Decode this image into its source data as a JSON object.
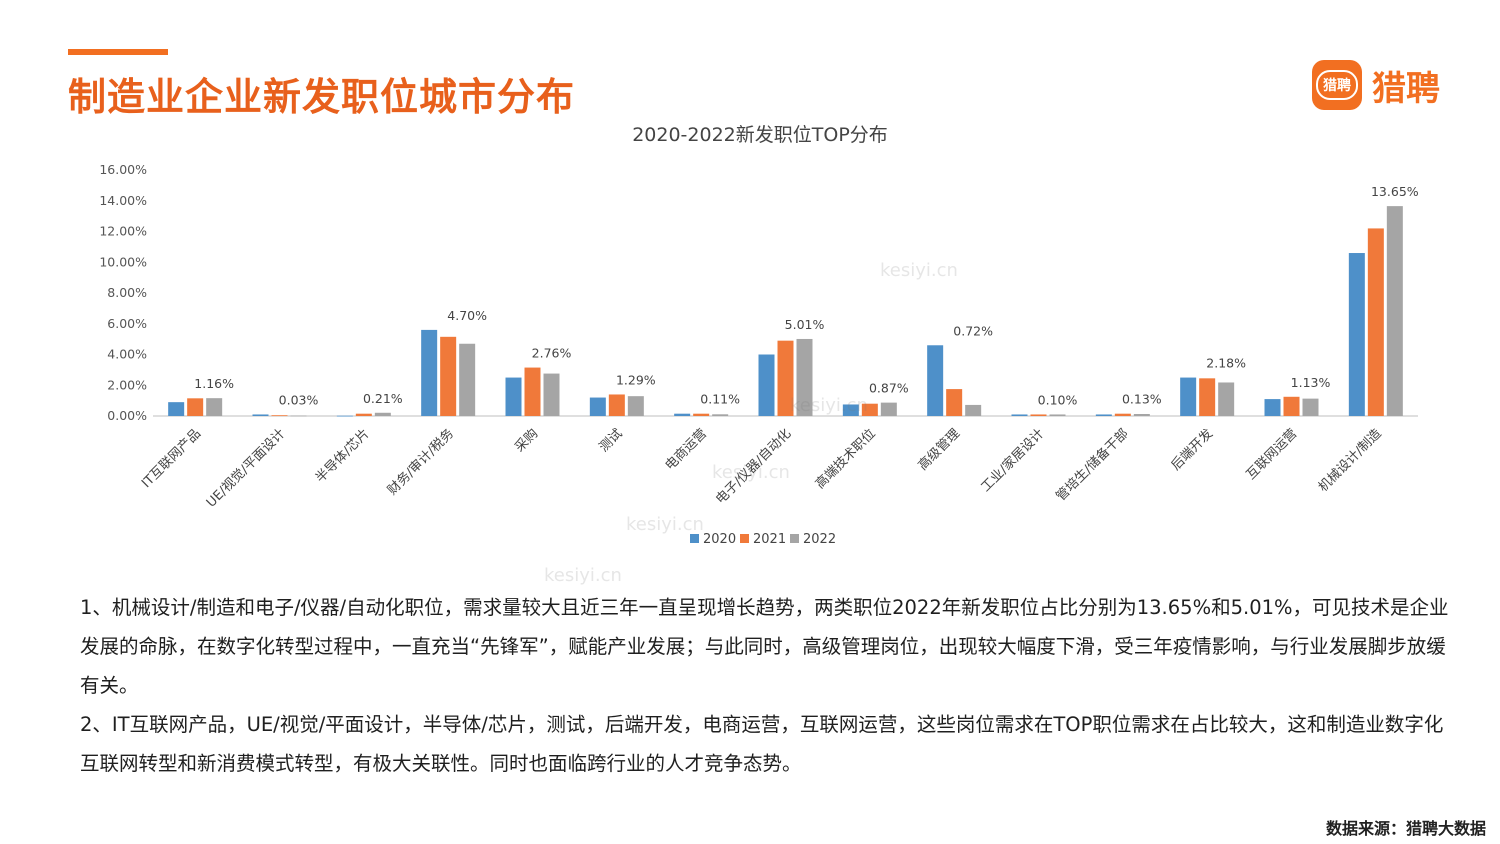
{
  "header": {
    "title": "制造业企业新发职位城市分布",
    "logo_badge": "猎聘",
    "logo_text": "猎聘"
  },
  "watermark": {
    "text": "kesiyi.cn"
  },
  "chart_data": {
    "type": "bar",
    "title": "2020-2022新发职位TOP分布",
    "categories": [
      "IT互联网产品",
      "UE/视觉/平面设计",
      "半导体/芯片",
      "财务/审计/税务",
      "采购",
      "测试",
      "电商运营",
      "电子/仪器/自动化",
      "高端技术职位",
      "高级管理",
      "工业/家居设计",
      "管培生/储备干部",
      "后端开发",
      "互联网运营",
      "机械设计/制造"
    ],
    "series": [
      {
        "name": "2020",
        "color": "#4e90c9",
        "values": [
          0.9,
          0.1,
          0.02,
          5.6,
          2.5,
          1.2,
          0.15,
          4.0,
          0.75,
          4.6,
          0.1,
          0.1,
          2.5,
          1.1,
          10.6
        ]
      },
      {
        "name": "2021",
        "color": "#f0793a",
        "values": [
          1.15,
          0.05,
          0.15,
          5.15,
          3.15,
          1.4,
          0.15,
          4.9,
          0.8,
          1.75,
          0.1,
          0.15,
          2.45,
          1.25,
          12.2
        ]
      },
      {
        "name": "2022",
        "color": "#a5a5a5",
        "values": [
          1.16,
          0.03,
          0.21,
          4.7,
          2.76,
          1.29,
          0.11,
          5.01,
          0.87,
          0.72,
          0.1,
          0.13,
          2.18,
          1.13,
          13.65
        ]
      }
    ],
    "data_labels": [
      "1.16%",
      "0.03%",
      "0.21%",
      "4.70%",
      "2.76%",
      "1.29%",
      "0.11%",
      "5.01%",
      "0.87%",
      "0.72%",
      "0.10%",
      "0.13%",
      "2.18%",
      "1.13%",
      "13.65%"
    ],
    "ylim": [
      0,
      16
    ],
    "yticks": [
      "0.00%",
      "2.00%",
      "4.00%",
      "6.00%",
      "8.00%",
      "10.00%",
      "12.00%",
      "14.00%",
      "16.00%"
    ],
    "grid": false,
    "legend": "bottom"
  },
  "notes": {
    "p1": "1、机械设计/制造和电子/仪器/自动化职位，需求量较大且近三年一直呈现增长趋势，两类职位2022年新发职位占比分别为13.65%和5.01%，可见技术是企业发展的命脉，在数字化转型过程中，一直充当“先锋军”，赋能产业发展；与此同时，高级管理岗位，出现较大幅度下滑，受三年疫情影响，与行业发展脚步放缓有关。",
    "p2": "2、IT互联网产品，UE/视觉/平面设计，半导体/芯片，测试，后端开发，电商运营，互联网运营，这些岗位需求在TOP职位需求在占比较大，这和制造业数字化互联网转型和新消费模式转型，有极大关联性。同时也面临跨行业的人才竞争态势。"
  },
  "source": "数据来源：猎聘大数据"
}
